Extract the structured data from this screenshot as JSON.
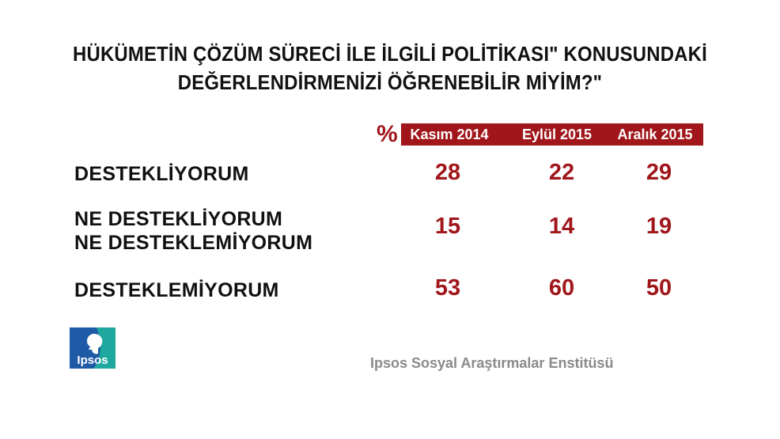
{
  "title_lines": [
    "HÜKÜMETİN ÇÖZÜM SÜRECİ İLE İLGİLİ POLİTİKASI\" KONUSUNDAKİ",
    "DEĞERLENDİRMENİZİ ÖĞRENEBİLİR MİYİM?\""
  ],
  "unit_symbol": "%",
  "columns": [
    "Kasım 2014",
    "Eylül 2015",
    "Aralık 2015"
  ],
  "rows": [
    {
      "label_lines": [
        "DESTEKLİYORUM"
      ],
      "values": [
        28,
        22,
        29
      ]
    },
    {
      "label_lines": [
        "NE DESTEKLİYORUM",
        "NE DESTEKLEMİYORUM"
      ],
      "values": [
        15,
        14,
        19
      ]
    },
    {
      "label_lines": [
        "DESTEKLEMİYORUM"
      ],
      "values": [
        53,
        60,
        50
      ]
    }
  ],
  "logo_text": "Ipsos",
  "footer": "Ipsos Sosyal Araştırmalar Enstitüsü",
  "colors": {
    "accent": "#a0161b",
    "logo_blue": "#1f5aa6",
    "logo_teal": "#1fa8a0",
    "footer_gray": "#8a8a8a"
  },
  "chart_data": {
    "type": "table",
    "title": "HÜKÜMETİN ÇÖZÜM SÜRECİ İLE İLGİLİ POLİTİKASI\" KONUSUNDAKİ DEĞERLENDİRMENİZİ ÖĞRENEBİLİR MİYİM?\"",
    "unit": "%",
    "categories": [
      "DESTEKLİYORUM",
      "NE DESTEKLİYORUM NE DESTEKLEMİYORUM",
      "DESTEKLEMİYORUM"
    ],
    "series": [
      {
        "name": "Kasım 2014",
        "values": [
          28,
          15,
          53
        ]
      },
      {
        "name": "Eylül 2015",
        "values": [
          22,
          14,
          60
        ]
      },
      {
        "name": "Aralık 2015",
        "values": [
          29,
          19,
          50
        ]
      }
    ]
  }
}
